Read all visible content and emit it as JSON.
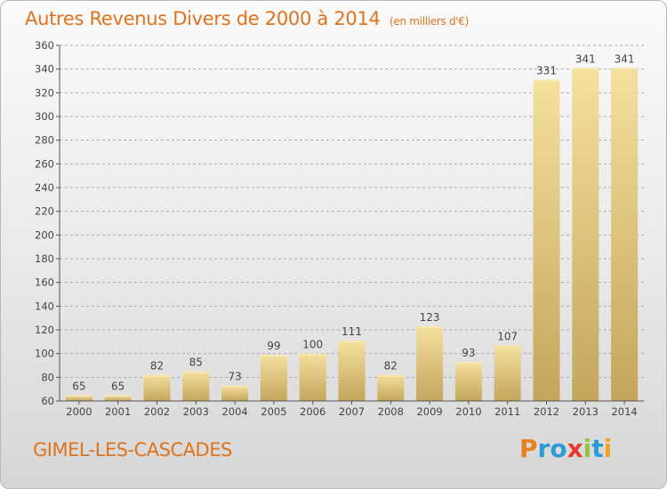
{
  "title": "Autres Revenus Divers de 2000 à 2014",
  "subtitle": "(en milliers d'€)",
  "location": "GIMEL-LES-CASCADES",
  "logo": {
    "letters": [
      "P",
      "r",
      "o",
      "x",
      "i",
      "t",
      "i"
    ],
    "colors": [
      "#e8821e",
      "#2b9ad6",
      "#2b9ad6",
      "#e83b2f",
      "#8cc63f",
      "#2b9ad6",
      "#f2a320"
    ]
  },
  "colors": {
    "title": "#e0731d",
    "bar_light": "#f3dd98",
    "bar_dark": "#c2a45a",
    "grid": "#a9a9a9"
  },
  "chart_data": {
    "type": "bar",
    "categories": [
      "2000",
      "2001",
      "2002",
      "2003",
      "2004",
      "2005",
      "2006",
      "2007",
      "2008",
      "2009",
      "2010",
      "2011",
      "2012",
      "2013",
      "2014"
    ],
    "values": [
      65,
      65,
      82,
      85,
      73,
      99,
      100,
      111,
      82,
      123,
      93,
      107,
      331,
      341,
      341
    ],
    "title": "Autres Revenus Divers de 2000 à 2014",
    "ylim": [
      60,
      360
    ],
    "yticks": [
      60,
      80,
      100,
      120,
      140,
      160,
      180,
      200,
      220,
      240,
      260,
      280,
      300,
      320,
      340,
      360
    ],
    "grid": true,
    "data_labels": true
  }
}
